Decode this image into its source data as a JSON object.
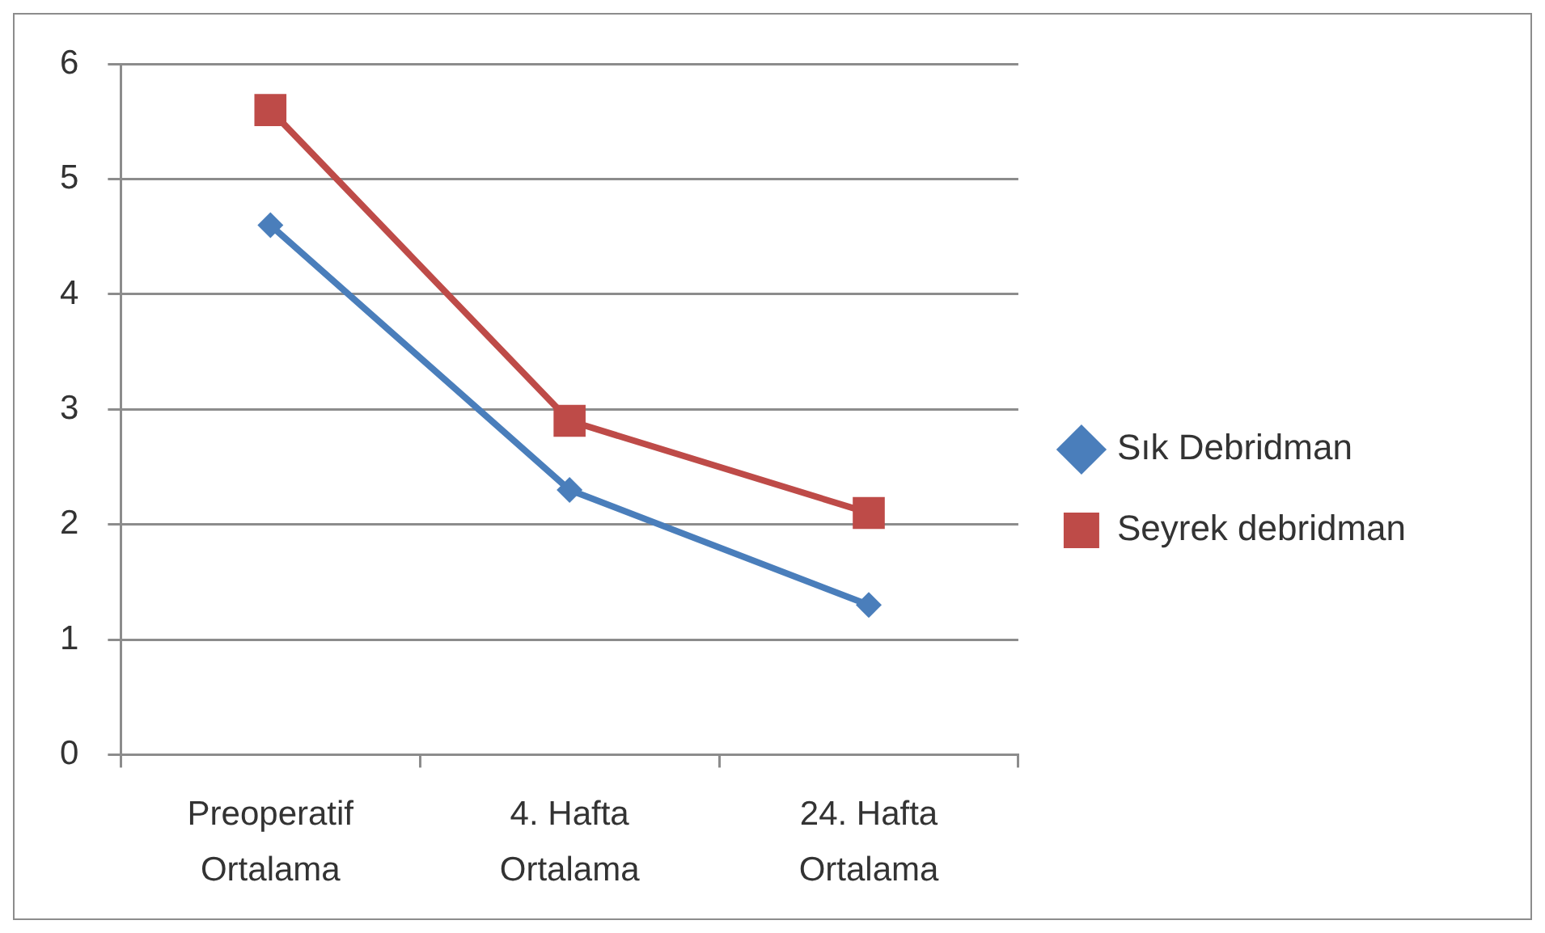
{
  "chart_data": {
    "type": "line",
    "categories": [
      "Preoperatif Ortalama",
      "4. Hafta Ortalama",
      "24. Hafta Ortalama"
    ],
    "series": [
      {
        "name": "Sık Debridman",
        "color": "#4a7ebb",
        "marker": "diamond",
        "values": [
          4.6,
          2.3,
          1.3
        ]
      },
      {
        "name": "Seyrek debridman",
        "color": "#be4b48",
        "marker": "square",
        "values": [
          5.6,
          2.9,
          2.1
        ]
      }
    ],
    "ylim": [
      0,
      6
    ],
    "yticks": [
      0,
      1,
      2,
      3,
      4,
      5,
      6
    ],
    "grid": "y",
    "legend": "right",
    "line_style": "solid"
  }
}
